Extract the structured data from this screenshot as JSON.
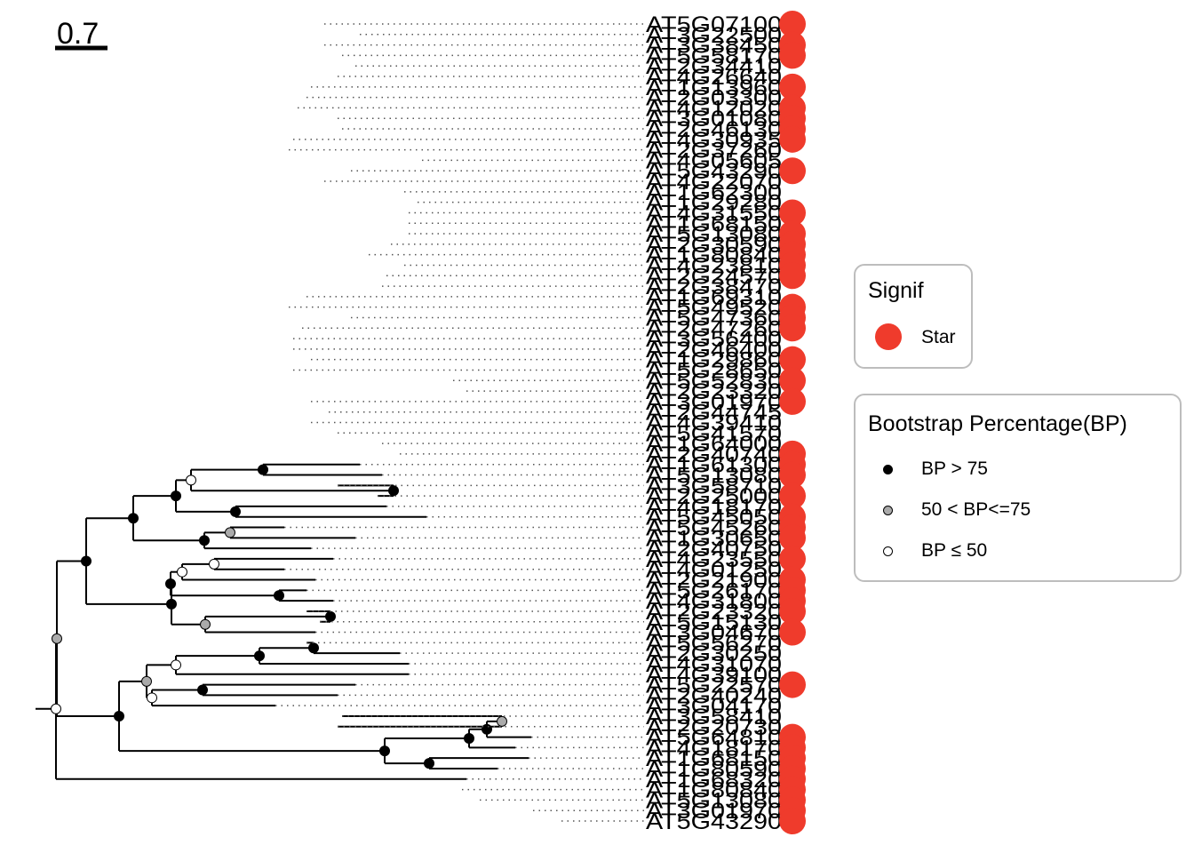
{
  "scale_bar": {
    "label": "0.7"
  },
  "tips": [
    {
      "label": "AT5G07100",
      "signif": true
    },
    {
      "label": "AT3G22500",
      "signif": false
    },
    {
      "label": "AT3G38450",
      "signif": true
    },
    {
      "label": "AT5G58170",
      "signif": true
    },
    {
      "label": "AT2G34410",
      "signif": false
    },
    {
      "label": "AT4G26640",
      "signif": false
    },
    {
      "label": "AT1G13960",
      "signif": true
    },
    {
      "label": "AT2G03300",
      "signif": false
    },
    {
      "label": "AT4G12020",
      "signif": true
    },
    {
      "label": "AT3G01080",
      "signif": true
    },
    {
      "label": "AT2G46130",
      "signif": true
    },
    {
      "label": "AT4G30935",
      "signif": true
    },
    {
      "label": "AT2G37260",
      "signif": false
    },
    {
      "label": "AT4G05605",
      "signif": false
    },
    {
      "label": "AT5G43290",
      "signif": true
    },
    {
      "label": "AT4G22070",
      "signif": false
    },
    {
      "label": "AT1G62300",
      "signif": false
    },
    {
      "label": "AT1G29280",
      "signif": false
    },
    {
      "label": "AT4G31550",
      "signif": true
    },
    {
      "label": "AT1G68150",
      "signif": false
    },
    {
      "label": "AT5G13080",
      "signif": true
    },
    {
      "label": "AT2G30590",
      "signif": true
    },
    {
      "label": "AT1G80840",
      "signif": true
    },
    {
      "label": "AT4G23810",
      "signif": true
    },
    {
      "label": "AT2G24570",
      "signif": true
    },
    {
      "label": "AT2G38470",
      "signif": false
    },
    {
      "label": "AT1G69310",
      "signif": false
    },
    {
      "label": "AT5G49520",
      "signif": true
    },
    {
      "label": "AT5G47360",
      "signif": true
    },
    {
      "label": "AT2G47260",
      "signif": true
    },
    {
      "label": "AT3G56400",
      "signif": false
    },
    {
      "label": "AT2G46400",
      "signif": false
    },
    {
      "label": "AT1G29860",
      "signif": true
    },
    {
      "label": "AT5G28650",
      "signif": false
    },
    {
      "label": "AT5G52830",
      "signif": true
    },
    {
      "label": "AT2G23320",
      "signif": false
    },
    {
      "label": "AT3G01970",
      "signif": true
    },
    {
      "label": "AT2G44745",
      "signif": false
    },
    {
      "label": "AT4G39410",
      "signif": false
    },
    {
      "label": "AT5G41570",
      "signif": false
    },
    {
      "label": "AT1G64000",
      "signif": false
    },
    {
      "label": "AT2G40740",
      "signif": true
    },
    {
      "label": "AT1G61300",
      "signif": true
    },
    {
      "label": "AT5G13080",
      "signif": true
    },
    {
      "label": "AT3G58710",
      "signif": false
    },
    {
      "label": "AT2G25000",
      "signif": true
    },
    {
      "label": "AT4G18170",
      "signif": false
    },
    {
      "label": "AT5G45050",
      "signif": true
    },
    {
      "label": "AT5G45260",
      "signif": true
    },
    {
      "label": "AT1G30650",
      "signif": true
    },
    {
      "label": "AT2G40750",
      "signif": false
    },
    {
      "label": "AT4G23550",
      "signif": true
    },
    {
      "label": "AT4G01250",
      "signif": false
    },
    {
      "label": "AT2G21900",
      "signif": true
    },
    {
      "label": "AT5G26170",
      "signif": true
    },
    {
      "label": "AT4G31800",
      "signif": true
    },
    {
      "label": "AT2G23320",
      "signif": true
    },
    {
      "label": "AT5G15130",
      "signif": false
    },
    {
      "label": "AT3G04670",
      "signif": true
    },
    {
      "label": "AT5G56270",
      "signif": false
    },
    {
      "label": "AT2G30250",
      "signif": false
    },
    {
      "label": "AT4G31070",
      "signif": false
    },
    {
      "label": "AT4G39100",
      "signif": false
    },
    {
      "label": "AT5G22570",
      "signif": true
    },
    {
      "label": "AT2G40240",
      "signif": false
    },
    {
      "label": "AT3G04170",
      "signif": false
    },
    {
      "label": "AT3G58410",
      "signif": false
    },
    {
      "label": "AT2G20730",
      "signif": false
    },
    {
      "label": "AT5G64810",
      "signif": true
    },
    {
      "label": "AT4G18170",
      "signif": true
    },
    {
      "label": "AT1G68150",
      "signif": true
    },
    {
      "label": "AT1G80590",
      "signif": true
    },
    {
      "label": "AT1G68320",
      "signif": true
    },
    {
      "label": "AT1G80840",
      "signif": true
    },
    {
      "label": "AT5G13080",
      "signif": true
    },
    {
      "label": "AT3G01970",
      "signif": true
    },
    {
      "label": "AT5G43290",
      "signif": true
    }
  ],
  "legend_signif": {
    "title": "Signif",
    "item_label": "Star",
    "color": "#ef3b2c"
  },
  "legend_bp": {
    "title": "Bootstrap Percentage(BP)",
    "items": [
      {
        "label": "BP > 75",
        "fill": "#000000"
      },
      {
        "label": "50 < BP<=75",
        "fill": "#aaaaaa"
      },
      {
        "label": "BP ≤ 50",
        "fill": "#ffffff"
      }
    ]
  },
  "colors": {
    "branch": "#000000",
    "signif_star": "#ef3b2c",
    "bp_high": "#000000",
    "bp_mid": "#aaaaaa",
    "bp_low": "#ffffff"
  }
}
